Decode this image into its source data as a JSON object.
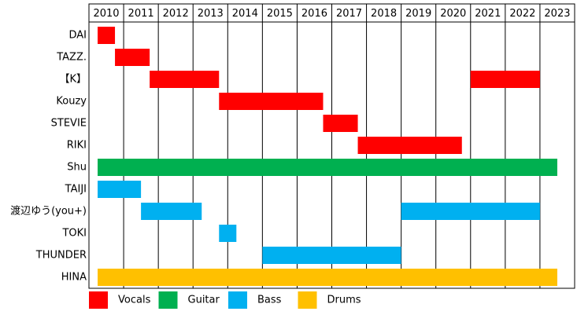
{
  "chart_data": {
    "type": "timeline",
    "xlim": [
      2010,
      2024
    ],
    "xticks": [
      2010,
      2011,
      2012,
      2013,
      2014,
      2015,
      2016,
      2017,
      2018,
      2019,
      2020,
      2021,
      2022,
      2023
    ],
    "grid": true,
    "legend": "bottom",
    "series": [
      {
        "name": "Vocals",
        "color": "#ff0000",
        "members": [
          {
            "label": "DAI",
            "spans": [
              [
                2010.25,
                2010.75
              ]
            ]
          },
          {
            "label": "TAZZ.",
            "spans": [
              [
                2010.75,
                2011.75
              ]
            ]
          },
          {
            "label": "【K】",
            "spans": [
              [
                2011.75,
                2013.75
              ],
              [
                2021.0,
                2023.0
              ]
            ]
          },
          {
            "label": "Kouzy",
            "spans": [
              [
                2013.75,
                2016.75
              ]
            ]
          },
          {
            "label": "STEVIE",
            "spans": [
              [
                2016.75,
                2017.75
              ]
            ]
          },
          {
            "label": "RIKI",
            "spans": [
              [
                2017.75,
                2020.75
              ]
            ]
          }
        ]
      },
      {
        "name": "Guitar",
        "color": "#00b050",
        "members": [
          {
            "label": "Shu",
            "spans": [
              [
                2010.25,
                2023.5
              ]
            ]
          }
        ]
      },
      {
        "name": "Bass",
        "color": "#00b0f0",
        "members": [
          {
            "label": "TAIJI",
            "spans": [
              [
                2010.25,
                2011.5
              ]
            ]
          },
          {
            "label": "渡辺ゆう(you+)",
            "spans": [
              [
                2011.5,
                2013.25
              ],
              [
                2019.0,
                2023.0
              ]
            ]
          },
          {
            "label": "TOKI",
            "spans": [
              [
                2013.75,
                2014.25
              ]
            ]
          },
          {
            "label": "THUNDER",
            "spans": [
              [
                2015.0,
                2019.0
              ]
            ]
          }
        ]
      },
      {
        "name": "Drums",
        "color": "#ffc000",
        "members": [
          {
            "label": "HINA",
            "spans": [
              [
                2010.25,
                2023.5
              ]
            ]
          }
        ]
      }
    ]
  }
}
